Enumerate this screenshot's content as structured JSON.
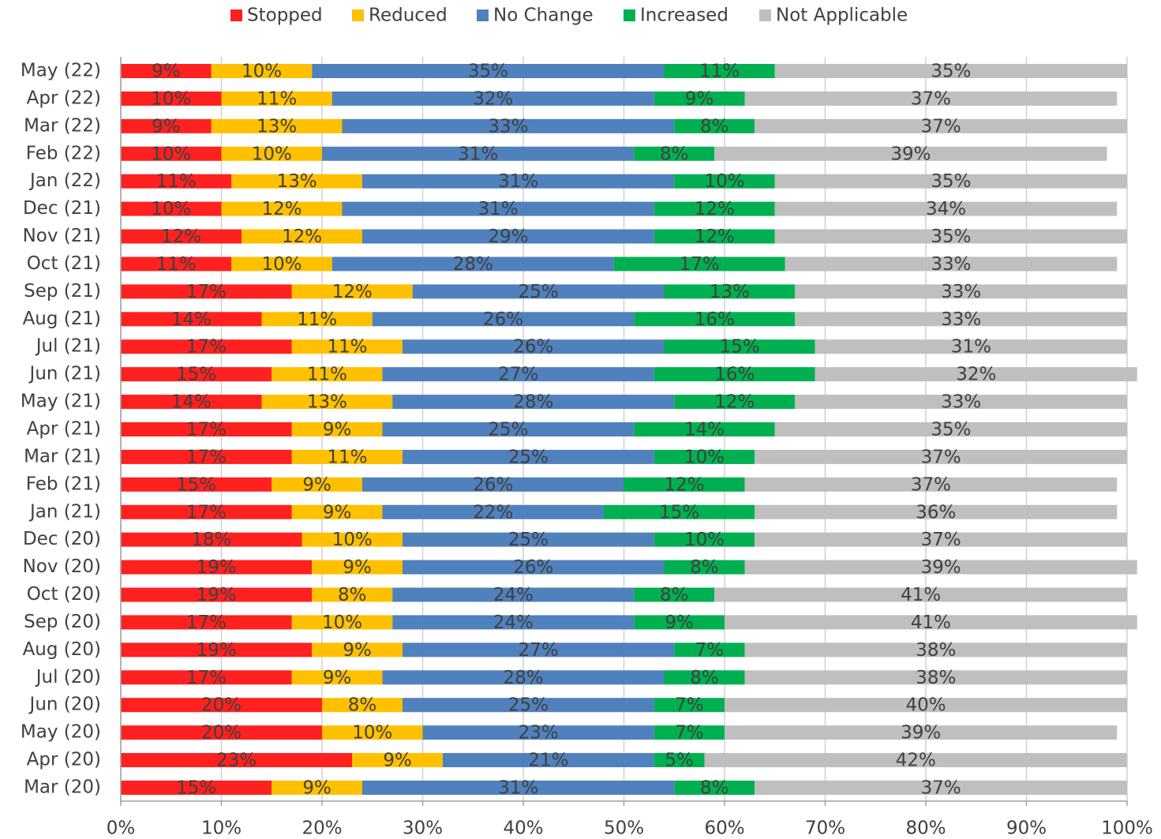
{
  "chart_data": {
    "type": "stacked_barh",
    "categories": [
      "May (22)",
      "Apr (22)",
      "Mar (22)",
      "Feb (22)",
      "Jan (22)",
      "Dec (21)",
      "Nov (21)",
      "Oct (21)",
      "Sep (21)",
      "Aug (21)",
      "Jul (21)",
      "Jun (21)",
      "May (21)",
      "Apr (21)",
      "Mar (21)",
      "Feb (21)",
      "Jan (21)",
      "Dec (20)",
      "Nov (20)",
      "Oct (20)",
      "Sep (20)",
      "Aug (20)",
      "Jul (20)",
      "Jun (20)",
      "May (20)",
      "Apr (20)",
      "Mar (20)"
    ],
    "series": [
      {
        "name": "Stopped",
        "color": "#ff2020",
        "values": [
          9,
          10,
          9,
          10,
          11,
          10,
          12,
          11,
          17,
          14,
          17,
          15,
          14,
          17,
          17,
          15,
          17,
          18,
          19,
          19,
          17,
          19,
          17,
          20,
          20,
          23,
          15
        ],
        "value_labels": [
          "9%",
          "10%",
          "9%",
          "10%",
          "11%",
          "10%",
          "12%",
          "11%",
          "17%",
          "14%",
          "17%",
          "15%",
          "14%",
          "17%",
          "17%",
          "15%",
          "17%",
          "18%",
          "19%",
          "19%",
          "17%",
          "19%",
          "17%",
          "20%",
          "20%",
          "23%",
          "15%"
        ]
      },
      {
        "name": "Reduced",
        "color": "#ffc000",
        "values": [
          10,
          11,
          13,
          10,
          13,
          12,
          12,
          10,
          12,
          11,
          11,
          11,
          13,
          9,
          11,
          9,
          9,
          10,
          9,
          8,
          10,
          9,
          9,
          8,
          10,
          9,
          9
        ],
        "value_labels": [
          "10%",
          "11%",
          "13%",
          "10%",
          "13%",
          "12%",
          "12%",
          "10%",
          "12%",
          "11%",
          "11%",
          "11%",
          "13%",
          "9%",
          "11%",
          "9%",
          "9%",
          "10%",
          "9%",
          "8%",
          "10%",
          "9%",
          "9%",
          "8%",
          "10%",
          "9%",
          "9%"
        ]
      },
      {
        "name": "No Change",
        "color": "#4f81bd",
        "values": [
          35,
          32,
          33,
          31,
          31,
          31,
          29,
          28,
          25,
          26,
          26,
          27,
          28,
          25,
          25,
          26,
          22,
          25,
          26,
          24,
          24,
          27,
          28,
          25,
          23,
          21,
          31
        ],
        "value_labels": [
          "35%",
          "32%",
          "33%",
          "31%",
          "31%",
          "31%",
          "29%",
          "28%",
          "25%",
          "26%",
          "26%",
          "27%",
          "28%",
          "25%",
          "25%",
          "26%",
          "22%",
          "25%",
          "26%",
          "24%",
          "24%",
          "27%",
          "28%",
          "25%",
          "23%",
          "21%",
          "31%"
        ]
      },
      {
        "name": "Increased",
        "color": "#00b050",
        "values": [
          11,
          9,
          8,
          8,
          10,
          12,
          12,
          17,
          13,
          16,
          15,
          16,
          12,
          14,
          10,
          12,
          15,
          10,
          8,
          8,
          9,
          7,
          8,
          7,
          7,
          5,
          8
        ],
        "value_labels": [
          "11%",
          "9%",
          "8%",
          "8%",
          "10%",
          "12%",
          "12%",
          "17%",
          "13%",
          "16%",
          "15%",
          "16%",
          "12%",
          "14%",
          "10%",
          "12%",
          "15%",
          "10%",
          "8%",
          "8%",
          "9%",
          "7%",
          "8%",
          "7%",
          "7%",
          "5%",
          "8%"
        ]
      },
      {
        "name": "Not Applicable",
        "color": "#bfbfbf",
        "values": [
          35,
          37,
          37,
          39,
          35,
          34,
          35,
          33,
          33,
          33,
          31,
          32,
          33,
          35,
          37,
          37,
          36,
          37,
          39,
          41,
          41,
          38,
          38,
          40,
          39,
          42,
          37
        ],
        "value_labels": [
          "35%",
          "37%",
          "37%",
          "39%",
          "35%",
          "34%",
          "35%",
          "33%",
          "33%",
          "33%",
          "31%",
          "32%",
          "33%",
          "35%",
          "37%",
          "37%",
          "36%",
          "37%",
          "39%",
          "41%",
          "41%",
          "38%",
          "38%",
          "40%",
          "39%",
          "42%",
          "37%"
        ]
      }
    ],
    "xlim": [
      0,
      100
    ],
    "xticks": [
      {
        "value": 0,
        "label": "0%"
      },
      {
        "value": 10,
        "label": "10%"
      },
      {
        "value": 20,
        "label": "20%"
      },
      {
        "value": 30,
        "label": "30%"
      },
      {
        "value": 40,
        "label": "40%"
      },
      {
        "value": 50,
        "label": "50%"
      },
      {
        "value": 60,
        "label": "60%"
      },
      {
        "value": 70,
        "label": "70%"
      },
      {
        "value": 80,
        "label": "80%"
      },
      {
        "value": 90,
        "label": "90%"
      },
      {
        "value": 100,
        "label": "100%"
      }
    ],
    "grid": true,
    "legend": "top"
  }
}
